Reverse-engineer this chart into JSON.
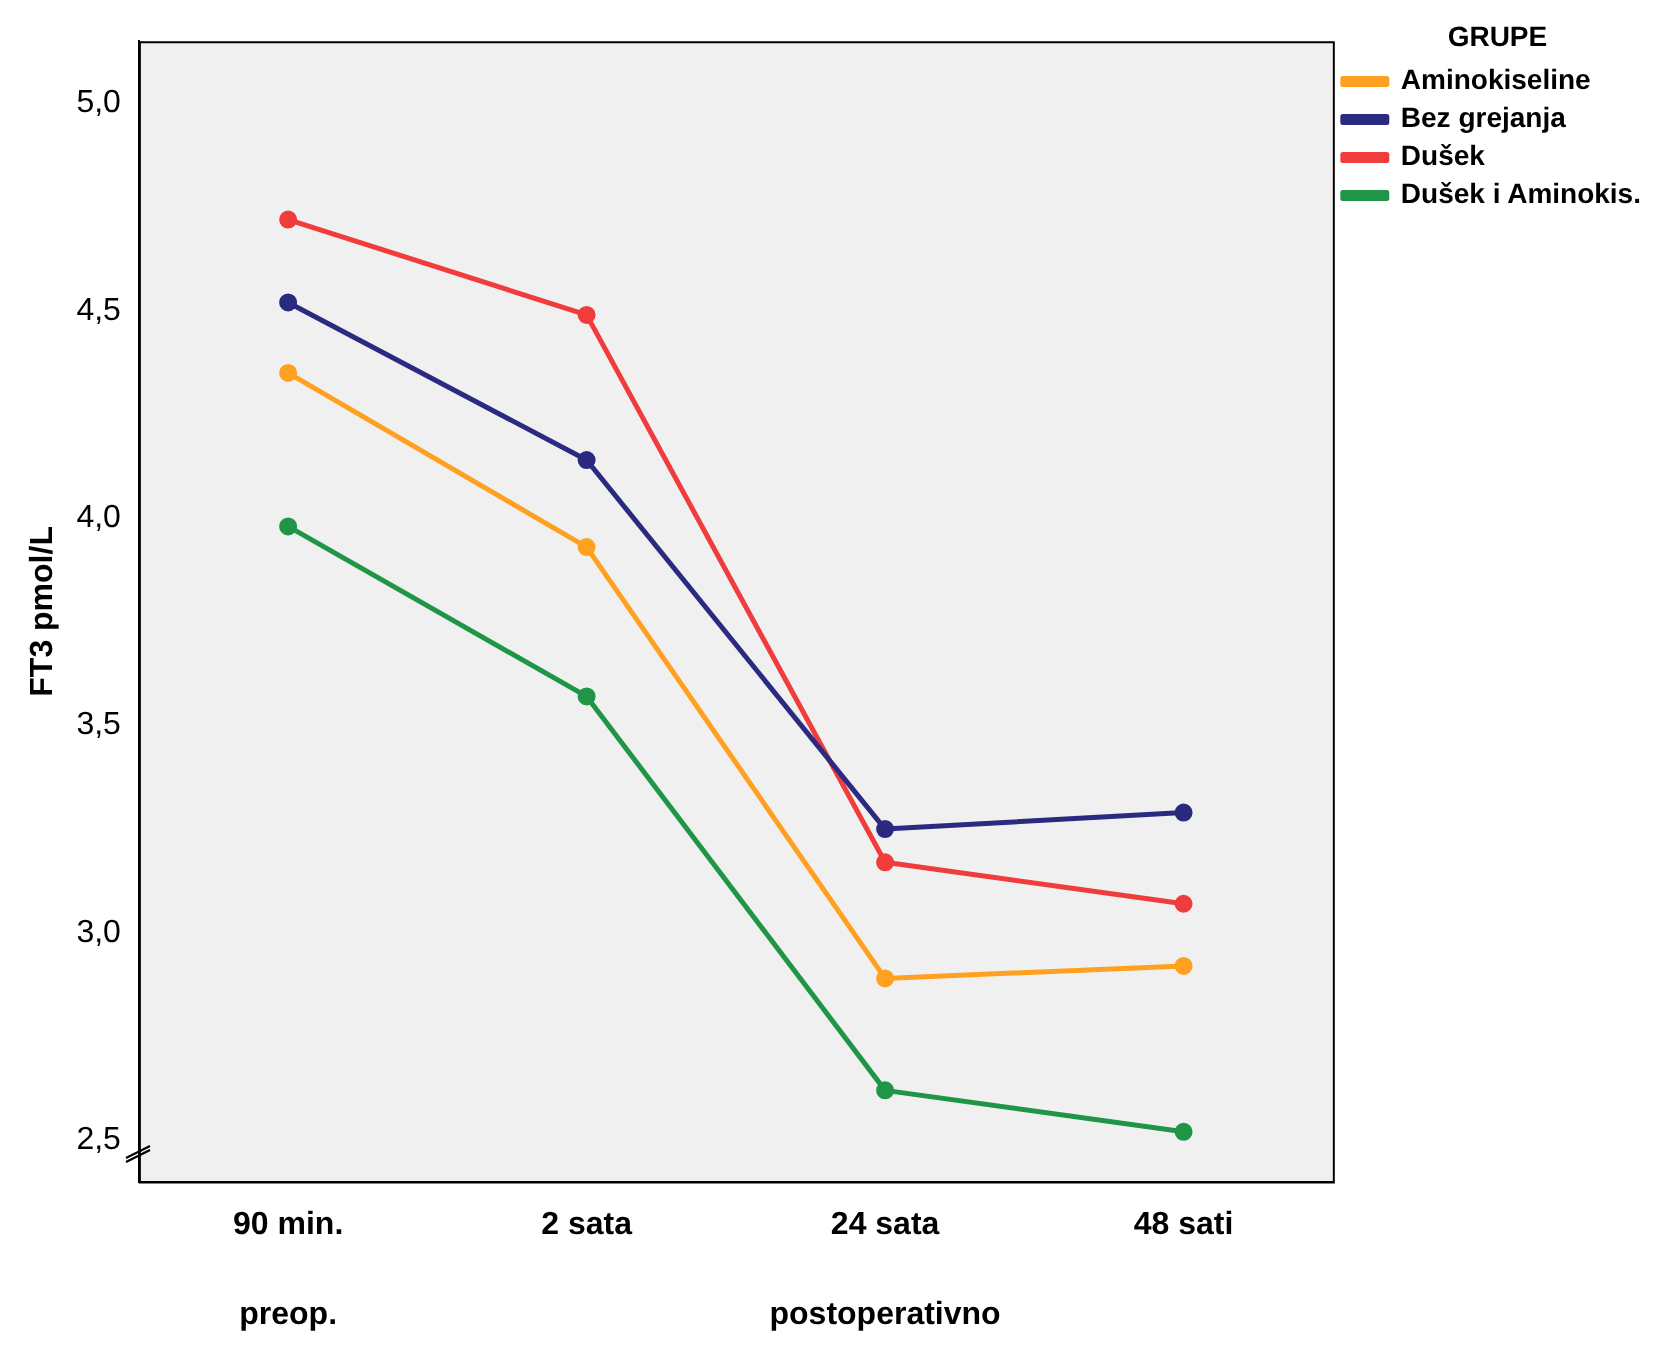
{
  "chart_data": {
    "type": "line",
    "ylabel": "FT3 pmol/L",
    "legend_title": "GRUPE",
    "legend": "top right",
    "marker": "circle",
    "grid": false,
    "categories": [
      "90 min.",
      "2 sata",
      "24 sata",
      "48 sati"
    ],
    "series": [
      {
        "name": "Aminokiseline",
        "color": "#ffa020",
        "values": [
          4.35,
          3.93,
          2.89,
          2.92
        ]
      },
      {
        "name": "Bez grejanja",
        "color": "#2a2a80",
        "values": [
          4.52,
          4.14,
          3.25,
          3.29
        ]
      },
      {
        "name": "Dušek",
        "color": "#f03c3c",
        "values": [
          4.72,
          4.49,
          3.17,
          3.07
        ]
      },
      {
        "name": "Dušek i Aminokis.",
        "color": "#1e9646",
        "values": [
          3.98,
          3.57,
          2.62,
          2.52
        ]
      }
    ],
    "ylim": [
      2.4,
      5.15
    ],
    "yticks": [
      {
        "value": 2.5,
        "label": "2,5"
      },
      {
        "value": 3,
        "label": "3,0"
      },
      {
        "value": 3.5,
        "label": "3,5"
      },
      {
        "value": 4,
        "label": "4,0"
      },
      {
        "value": 4.5,
        "label": "4,5"
      },
      {
        "value": 5,
        "label": "5,0"
      }
    ],
    "annotations": [
      "preop.",
      "postoperativno"
    ]
  }
}
